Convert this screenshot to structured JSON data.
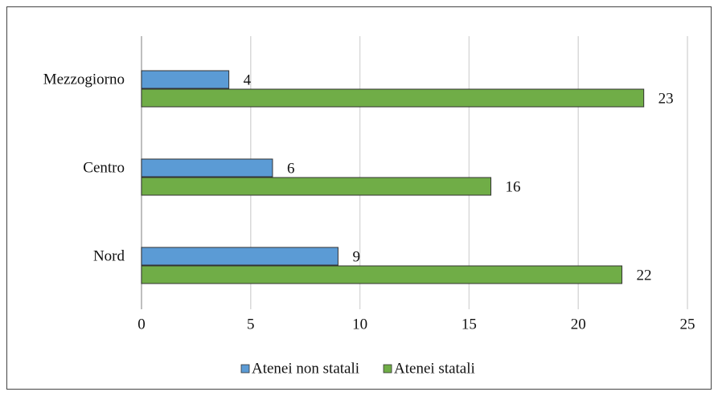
{
  "chart_data": {
    "type": "hbar",
    "categories": [
      "Mezzogiorno",
      "Centro",
      "Nord"
    ],
    "series": [
      {
        "name": "Atenei non statali",
        "color": "#5b9bd5",
        "values": [
          4,
          6,
          9
        ]
      },
      {
        "name": "Atenei statali",
        "color": "#70ad47",
        "values": [
          23,
          16,
          22
        ]
      }
    ],
    "xlim": [
      0,
      25
    ],
    "xticks": [
      0,
      5,
      10,
      15,
      20,
      25
    ],
    "grid": true,
    "legend": "bottom"
  }
}
